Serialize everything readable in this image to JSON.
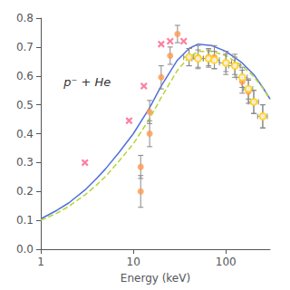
{
  "chart_data": {
    "type": "scatter",
    "xlabel": "Energy (keV)",
    "annotation": "p⁻ + He",
    "log": "x",
    "grid": false,
    "xlim": [
      1,
      300
    ],
    "ylim": [
      0.0,
      0.8
    ],
    "xticks": [
      1,
      10,
      100
    ],
    "yticks": [
      {
        "value": 0.0,
        "label": "0.0"
      },
      0.1,
      0.2,
      0.3,
      0.4,
      0.5,
      0.6,
      0.7,
      0.8
    ],
    "series": [
      {
        "type": "line",
        "line_style": "solid",
        "x": [
          1,
          1.5,
          2,
          3,
          4,
          5,
          7,
          10,
          15,
          20,
          30,
          40,
          50,
          70,
          100,
          150,
          200,
          250,
          300
        ],
        "values": [
          0.105,
          0.135,
          0.16,
          0.205,
          0.245,
          0.278,
          0.335,
          0.4,
          0.49,
          0.565,
          0.655,
          0.695,
          0.71,
          0.705,
          0.685,
          0.645,
          0.605,
          0.56,
          0.52
        ]
      },
      {
        "type": "line",
        "line_style": "dashed",
        "x": [
          1,
          1.5,
          2,
          3,
          4,
          5,
          7,
          10,
          15,
          20,
          30,
          40,
          50,
          70,
          100,
          150,
          200,
          250,
          300
        ],
        "values": [
          0.1,
          0.125,
          0.148,
          0.188,
          0.222,
          0.252,
          0.305,
          0.365,
          0.452,
          0.525,
          0.62,
          0.665,
          0.685,
          0.685,
          0.67,
          0.635,
          0.598,
          0.558,
          0.518
        ]
      },
      {
        "type": "scatter",
        "marker": "circle",
        "x": [
          12,
          12,
          15,
          15,
          20,
          25,
          30,
          40,
          50,
          65,
          75,
          100,
          125,
          150,
          175,
          200,
          250
        ],
        "values": [
          0.2,
          0.285,
          0.4,
          0.475,
          0.595,
          0.67,
          0.745,
          0.665,
          0.665,
          0.665,
          0.665,
          0.645,
          0.635,
          0.58,
          0.545,
          0.51,
          0.46
        ],
        "yerr": [
          0.055,
          0.04,
          0.045,
          0.04,
          0.04,
          0.03,
          0.03,
          0.03,
          0.04,
          0.03,
          0.04,
          0.04,
          0.04,
          0.04,
          0.04,
          0.04,
          0.04
        ]
      },
      {
        "type": "scatter",
        "marker": "open_circle",
        "x": [
          40,
          50,
          65,
          75,
          100,
          125,
          150,
          175,
          200,
          250
        ],
        "values": [
          0.665,
          0.66,
          0.66,
          0.655,
          0.645,
          0.635,
          0.595,
          0.555,
          0.51,
          0.46
        ],
        "yerr": [
          0.03,
          0.03,
          0.03,
          0.03,
          0.03,
          0.03,
          0.035,
          0.035,
          0.04,
          0.04
        ],
        "xerr_lo": [
          5,
          7,
          8,
          10,
          15,
          18,
          20,
          20,
          25,
          30
        ],
        "xerr_hi": [
          5,
          7,
          8,
          10,
          15,
          18,
          20,
          20,
          25,
          30
        ]
      },
      {
        "type": "scatter",
        "marker": "x",
        "x": [
          3,
          9,
          13,
          20,
          25,
          35
        ],
        "values": [
          0.3,
          0.445,
          0.565,
          0.71,
          0.72,
          0.72
        ]
      }
    ]
  }
}
